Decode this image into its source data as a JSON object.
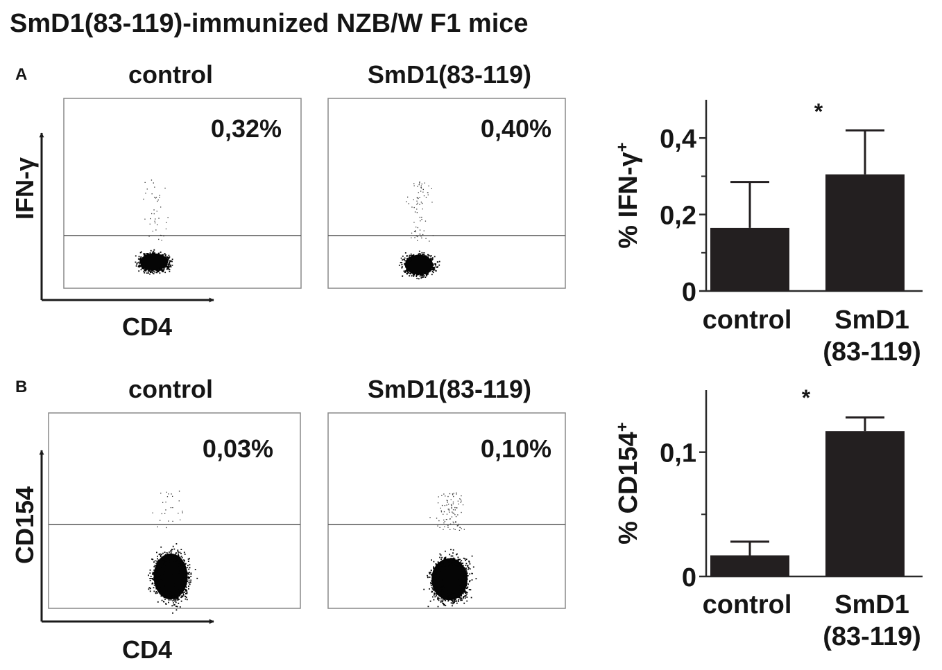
{
  "figure_title": "SmD1(83-119)-immunized NZB/W F1 mice",
  "panels": [
    {
      "letter": "A",
      "y_marker": "IFN-γ",
      "x_marker": "CD4",
      "flow_plots": [
        {
          "condition": "control",
          "percent_label": "0,32%"
        },
        {
          "condition": "SmD1(83-119)",
          "percent_label": "0,40%"
        }
      ]
    },
    {
      "letter": "B",
      "y_marker": "CD154",
      "x_marker": "CD4",
      "flow_plots": [
        {
          "condition": "control",
          "percent_label": "0,03%"
        },
        {
          "condition": "SmD1(83-119)",
          "percent_label": "0,10%"
        }
      ]
    }
  ],
  "colors": {
    "bar": "#231f20",
    "text": "#151515",
    "axis": "#2a2a2a"
  },
  "chart_data": [
    {
      "type": "bar",
      "panel": "A",
      "ylabel_main": "% IFN-γ",
      "ylabel_sup": "+",
      "categories": [
        [
          "control"
        ],
        [
          "SmD1",
          "(83-119)"
        ]
      ],
      "values": [
        0.165,
        0.305
      ],
      "error_upper": [
        0.285,
        0.42
      ],
      "ylim": [
        0,
        0.5
      ],
      "yticks": [
        0,
        0.2,
        0.4
      ],
      "ytick_labels": [
        "0",
        "0,2",
        "0,4"
      ],
      "significance": "*"
    },
    {
      "type": "bar",
      "panel": "B",
      "ylabel_main": "% CD154",
      "ylabel_sup": "+",
      "categories": [
        [
          "control"
        ],
        [
          "SmD1",
          "(83-119)"
        ]
      ],
      "values": [
        0.017,
        0.117
      ],
      "error_upper": [
        0.028,
        0.128
      ],
      "ylim": [
        0,
        0.15
      ],
      "yticks": [
        0,
        0.1
      ],
      "ytick_labels": [
        "0",
        "0,1"
      ],
      "significance": "*"
    }
  ]
}
